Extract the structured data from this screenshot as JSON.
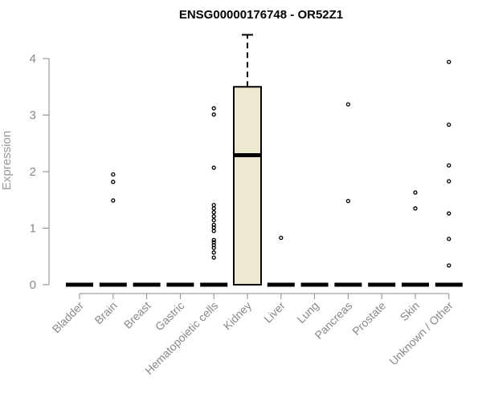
{
  "chart_data": {
    "type": "box",
    "title": "ENSG00000176748 - OR52Z1",
    "xlabel": "",
    "ylabel": "Expression",
    "ylim": [
      0,
      4.45
    ],
    "yticks": [
      0,
      1,
      2,
      3,
      4
    ],
    "categories": [
      "Bladder",
      "Brain",
      "Breast",
      "Gastric",
      "Hematopoietic cells",
      "Kidney",
      "Liver",
      "Lung",
      "Pancreas",
      "Prostate",
      "Skin",
      "Unknown / Other"
    ],
    "boxes": [
      {
        "q1": 0,
        "median": 0,
        "q3": 0,
        "whisker_low": 0,
        "whisker_high": 0,
        "outliers": []
      },
      {
        "q1": 0,
        "median": 0,
        "q3": 0,
        "whisker_low": 0,
        "whisker_high": 0,
        "outliers": [
          1.95,
          1.82,
          1.49
        ]
      },
      {
        "q1": 0,
        "median": 0,
        "q3": 0,
        "whisker_low": 0,
        "whisker_high": 0,
        "outliers": []
      },
      {
        "q1": 0,
        "median": 0,
        "q3": 0,
        "whisker_low": 0,
        "whisker_high": 0,
        "outliers": []
      },
      {
        "q1": 0,
        "median": 0,
        "q3": 0,
        "whisker_low": 0,
        "whisker_high": 0,
        "outliers": [
          3.12,
          3.01,
          2.07,
          1.41,
          1.35,
          1.28,
          1.21,
          1.14,
          1.06,
          1.01,
          0.95,
          0.79,
          0.75,
          0.7,
          0.65,
          0.57,
          0.48
        ]
      },
      {
        "q1": 0,
        "median": 2.29,
        "q3": 3.5,
        "whisker_low": 0,
        "whisker_high": 4.42,
        "outliers": []
      },
      {
        "q1": 0,
        "median": 0,
        "q3": 0,
        "whisker_low": 0,
        "whisker_high": 0,
        "outliers": [
          0.83
        ]
      },
      {
        "q1": 0,
        "median": 0,
        "q3": 0,
        "whisker_low": 0,
        "whisker_high": 0,
        "outliers": []
      },
      {
        "q1": 0,
        "median": 0,
        "q3": 0,
        "whisker_low": 0,
        "whisker_high": 0,
        "outliers": [
          3.19,
          1.48
        ]
      },
      {
        "q1": 0,
        "median": 0,
        "q3": 0,
        "whisker_low": 0,
        "whisker_high": 0,
        "outliers": []
      },
      {
        "q1": 0,
        "median": 0,
        "q3": 0,
        "whisker_low": 0,
        "whisker_high": 0,
        "outliers": [
          1.63,
          1.35
        ]
      },
      {
        "q1": 0,
        "median": 0,
        "q3": 0,
        "whisker_low": 0,
        "whisker_high": 0,
        "outliers": [
          3.94,
          2.83,
          2.11,
          1.83,
          1.26,
          0.81,
          0.34
        ]
      }
    ],
    "box_fill": "#ede8d0",
    "grid": false
  }
}
